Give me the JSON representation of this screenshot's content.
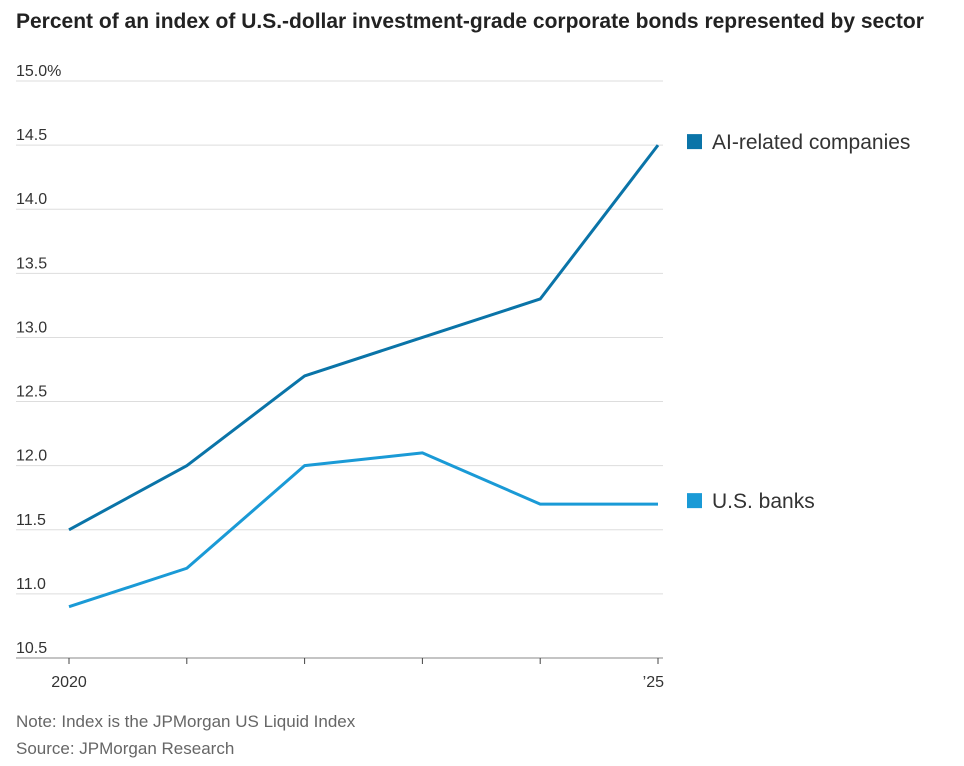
{
  "chart_data": {
    "type": "line",
    "title": "Percent of an index of U.S.-dollar investment-grade corporate bonds represented by sector",
    "x": [
      2020,
      2021,
      2022,
      2023,
      2024,
      2025
    ],
    "x_tick_labels": [
      "2020",
      "",
      "",
      "",
      "",
      "’25"
    ],
    "ylim": [
      10.5,
      15.0
    ],
    "y_ticks": [
      10.5,
      11.0,
      11.5,
      12.0,
      12.5,
      13.0,
      13.5,
      14.0,
      14.5,
      15.0
    ],
    "y_tick_labels": [
      "10.5",
      "11.0",
      "11.5",
      "12.0",
      "12.5",
      "13.0",
      "13.5",
      "14.0",
      "14.5",
      "15.0%"
    ],
    "grid": true,
    "legend_placement": "right, next to line ends",
    "series": [
      {
        "name": "AI-related companies",
        "color": "#0a74a8",
        "values": [
          11.5,
          12.0,
          12.7,
          13.0,
          13.3,
          14.5
        ]
      },
      {
        "name": "U.S. banks",
        "color": "#1a9ad6",
        "values": [
          10.9,
          11.2,
          12.0,
          12.1,
          11.7,
          11.7
        ]
      }
    ]
  },
  "notes": {
    "note": "Note: Index is the JPMorgan US Liquid Index",
    "source": "Source: JPMorgan Research"
  }
}
